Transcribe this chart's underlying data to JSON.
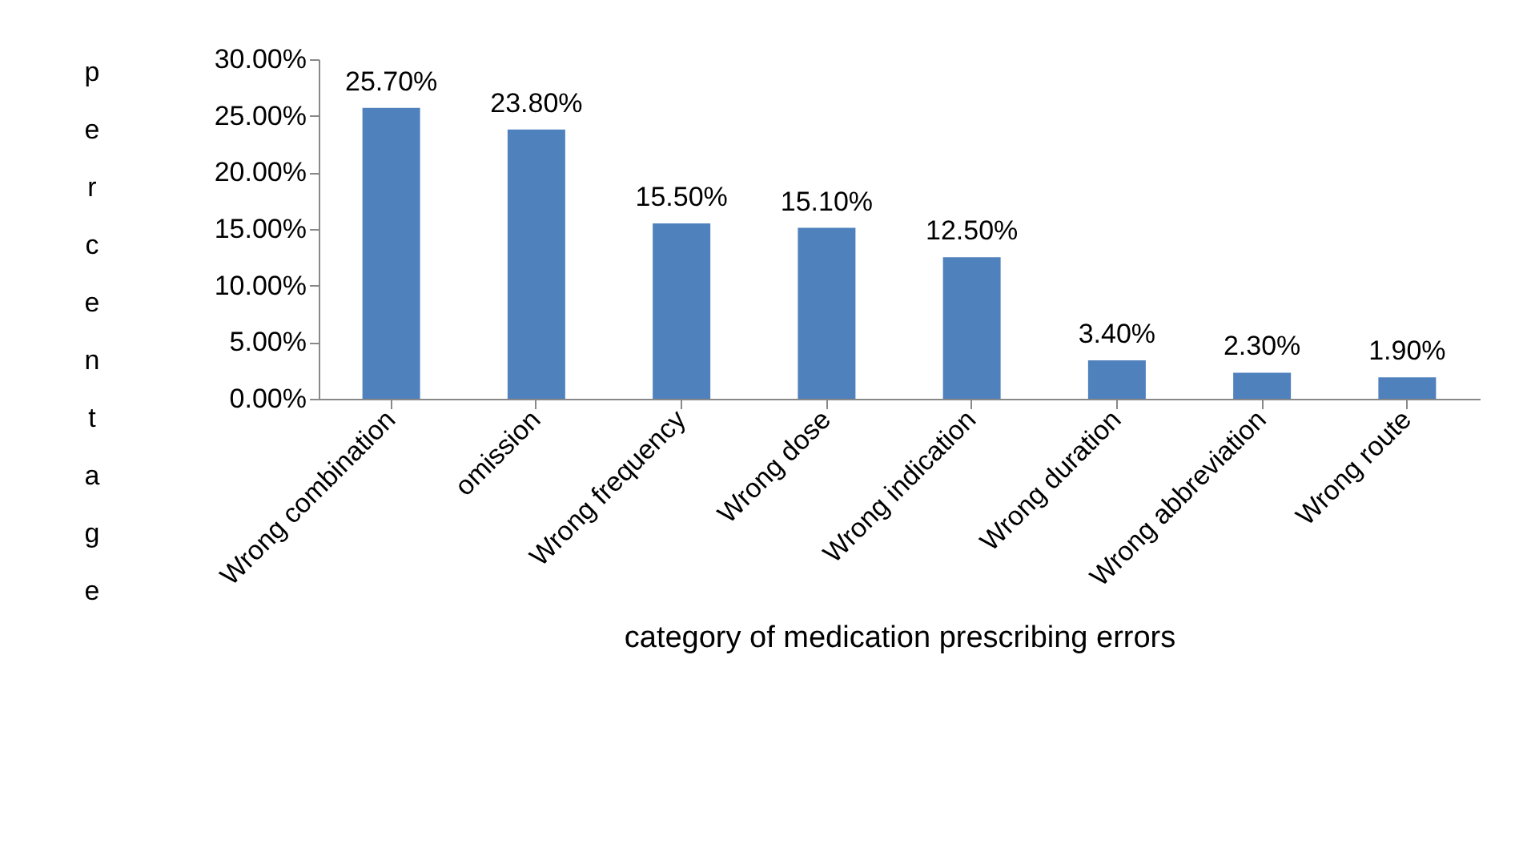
{
  "chart_data": {
    "type": "bar",
    "xlabel": "category of medication prescribing errors",
    "ylabel": "percentage",
    "categories": [
      "Wrong combination",
      "omission",
      "Wrong frequency",
      "Wrong dose",
      "Wrong indication",
      "Wrong duration",
      "Wrong abbreviation",
      "Wrong route"
    ],
    "values": [
      25.7,
      23.8,
      15.5,
      15.1,
      12.5,
      3.4,
      2.3,
      1.9
    ],
    "value_labels": [
      "25.70%",
      "23.80%",
      "15.50%",
      "15.10%",
      "12.50%",
      "3.40%",
      "2.30%",
      "1.90%"
    ],
    "color": "#4f81bd",
    "ylim": [
      0,
      30
    ],
    "yticks": [
      {
        "value": 0,
        "label": "0.00%"
      },
      {
        "value": 5,
        "label": "5.00%"
      },
      {
        "value": 10,
        "label": "10.00%"
      },
      {
        "value": 15,
        "label": "15.00%"
      },
      {
        "value": 20,
        "label": "20.00%"
      },
      {
        "value": 25,
        "label": "25.00%"
      },
      {
        "value": 30,
        "label": "30.00%"
      }
    ],
    "grid": false
  }
}
